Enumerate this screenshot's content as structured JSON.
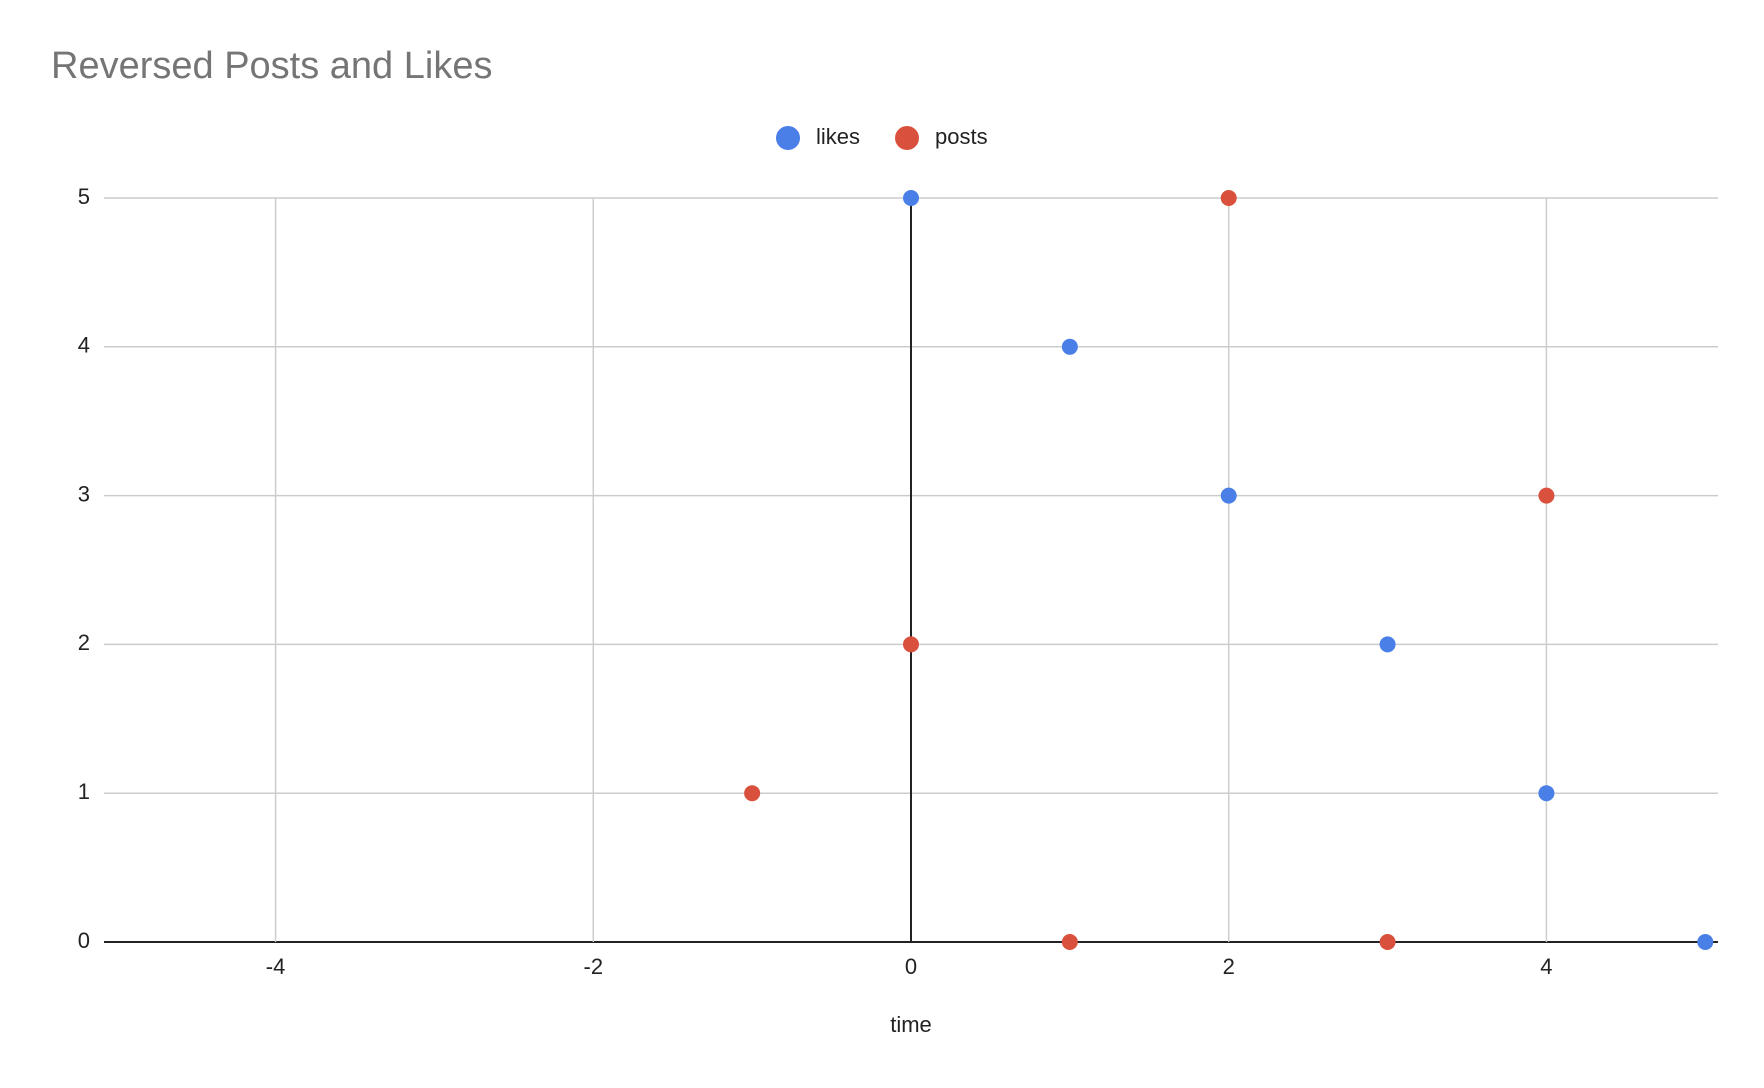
{
  "chart_data": {
    "type": "scatter",
    "title": "Reversed Posts and Likes",
    "x_label": "time",
    "series": [
      {
        "name": "likes",
        "color": "#4a7fe8",
        "x": [
          0,
          1,
          2,
          3,
          4,
          5
        ],
        "values": [
          5,
          4,
          3,
          2,
          1,
          0
        ]
      },
      {
        "name": "posts",
        "color": "#d9503c",
        "x": [
          -1,
          0,
          1,
          2,
          3,
          4
        ],
        "values": [
          1,
          2,
          0,
          5,
          0,
          3
        ]
      }
    ],
    "xlim": [
      -5.08,
      5.08
    ],
    "xticks": [
      -4,
      -2,
      0,
      2,
      4
    ],
    "ylim": [
      0,
      5
    ],
    "yticks": [
      0,
      1,
      2,
      3,
      4,
      5
    ],
    "grid": true,
    "legend": "top"
  }
}
